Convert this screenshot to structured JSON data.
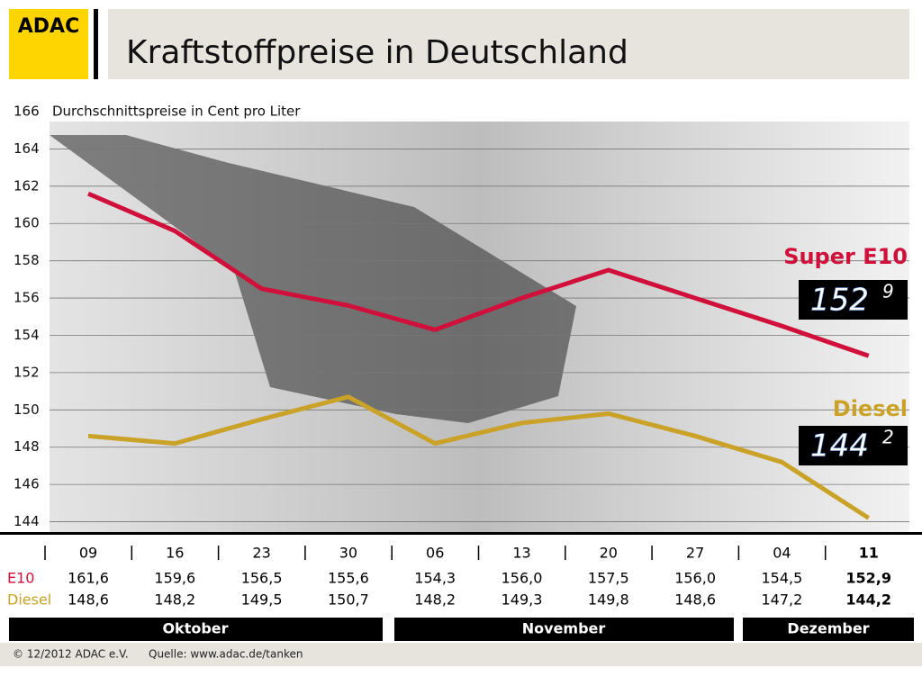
{
  "chart_data": {
    "type": "line",
    "brand": "ADAC",
    "title": "Kraftstoffpreise in Deutschland",
    "y_label": "Durchschnittspreise in Cent pro Liter",
    "categories": [
      "09",
      "16",
      "23",
      "30",
      "06",
      "13",
      "20",
      "27",
      "04",
      "11"
    ],
    "months": [
      "Oktober",
      "November",
      "Dezember"
    ],
    "series": [
      {
        "name": "E10",
        "legend": "Super E10",
        "color": "#d0103a",
        "display": {
          "main": "152",
          "sup": "9"
        },
        "values": [
          161.6,
          159.6,
          156.5,
          155.6,
          154.3,
          156.0,
          157.5,
          156.0,
          154.5,
          152.9
        ],
        "value_labels": [
          "161,6",
          "159,6",
          "156,5",
          "155,6",
          "154,3",
          "156,0",
          "157,5",
          "156,0",
          "154,5",
          "152,9"
        ]
      },
      {
        "name": "Diesel",
        "legend": "Diesel",
        "color": "#c9a227",
        "display": {
          "main": "144",
          "sup": "2"
        },
        "values": [
          148.6,
          148.2,
          149.5,
          150.7,
          148.2,
          149.3,
          149.8,
          148.6,
          147.2,
          144.2
        ],
        "value_labels": [
          "148,6",
          "148,2",
          "149,5",
          "150,7",
          "148,2",
          "149,3",
          "149,8",
          "148,6",
          "147,2",
          "144,2"
        ]
      }
    ],
    "ylim": [
      143.4,
      166
    ],
    "yticks": [
      144,
      146,
      148,
      150,
      152,
      154,
      156,
      158,
      160,
      162,
      164,
      166
    ],
    "grid": true,
    "footer": {
      "copyright": "© 12/2012 ADAC e.V.",
      "source": "Quelle: www.adac.de/tanken"
    }
  }
}
